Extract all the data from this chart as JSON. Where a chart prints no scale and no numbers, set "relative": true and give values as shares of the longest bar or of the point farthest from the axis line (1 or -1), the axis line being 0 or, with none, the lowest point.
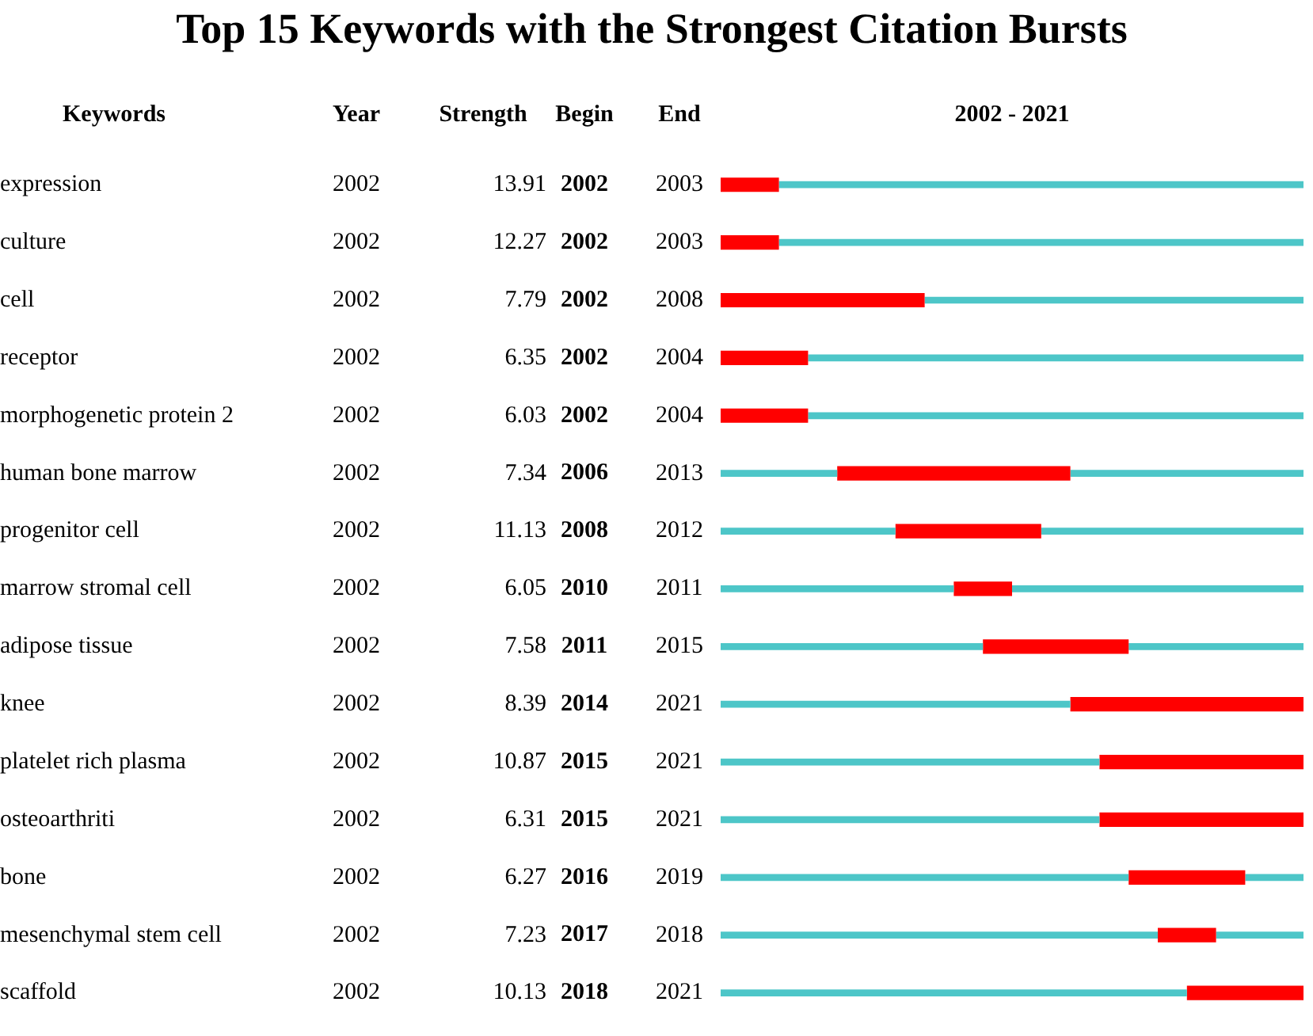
{
  "chart_data": {
    "type": "bar",
    "orientation": "horizontal",
    "relative": true,
    "title": "Top 15 Keywords with the Strongest Citation Bursts",
    "categories": [
      "expression",
      "culture",
      "cell",
      "receptor",
      "morphogenetic protein 2",
      "human bone marrow",
      "progenitor cell",
      "marrow stromal cell",
      "adipose tissue",
      "knee",
      "platelet rich plasma",
      "osteoarthriti",
      "bone",
      "mesenchymal stem cell",
      "scaffold"
    ],
    "series": [
      {
        "color": "#4dc6c8",
        "values": [
          0,
          0,
          0,
          0,
          0,
          0.2,
          0.3,
          0.4,
          0.45,
          0.6,
          0.65,
          0.65,
          0.7,
          0.75,
          0.8
        ]
      },
      {
        "color": "#ff0000",
        "values": [
          0.1,
          0.1,
          0.35,
          0.15,
          0.15,
          0.4,
          0.25,
          0.1,
          0.25,
          0.4,
          0.35,
          0.35,
          0.2,
          0.1,
          0.2
        ]
      },
      {
        "color": "#4dc6c8",
        "values": [
          0.9,
          0.9,
          0.65,
          0.85,
          0.85,
          0.4,
          0.45,
          0.5,
          0.3,
          0,
          0,
          0,
          0.1,
          0.15,
          0
        ]
      }
    ],
    "stacked": true,
    "legend": false,
    "annotations": [
      "Keywords",
      "Year",
      "Strength",
      "Begin",
      "End",
      "2002 - 2021",
      "2002",
      "13.91",
      "2002",
      "2003",
      "2002",
      "12.27",
      "2002",
      "2003",
      "2002",
      "7.79",
      "2002",
      "2008",
      "2002",
      "6.35",
      "2002",
      "2004",
      "2002",
      "6.03",
      "2002",
      "2004",
      "2002",
      "7.34",
      "2006",
      "2013",
      "2002",
      "11.13",
      "2008",
      "2012",
      "2002",
      "6.05",
      "2010",
      "2011",
      "2002",
      "7.58",
      "2011",
      "2015",
      "2002",
      "8.39",
      "2014",
      "2021",
      "2002",
      "10.87",
      "2015",
      "2021",
      "2002",
      "6.31",
      "2015",
      "2021",
      "2002",
      "6.27",
      "2016",
      "2019",
      "2002",
      "7.23",
      "2017",
      "2018",
      "2002",
      "10.13",
      "2018",
      "2021"
    ]
  }
}
